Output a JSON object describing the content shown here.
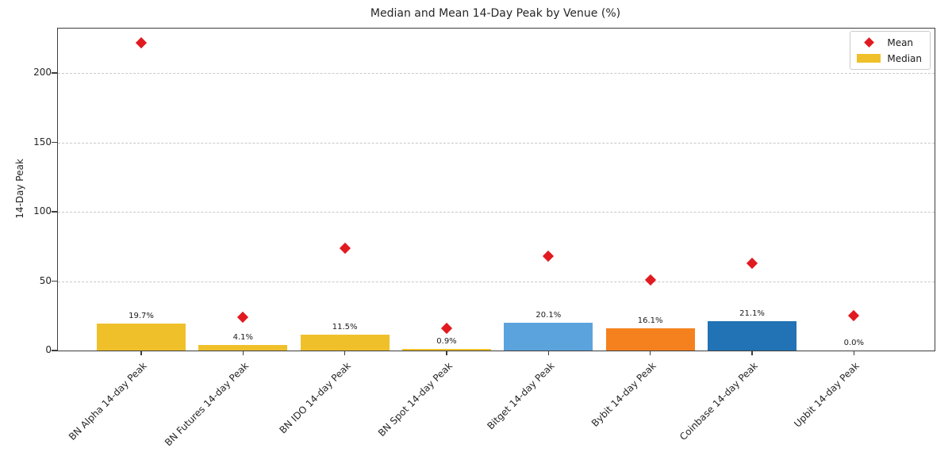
{
  "chart_data": {
    "type": "bar",
    "title": "Median and Mean 14-Day Peak by Venue (%)",
    "xlabel": "",
    "ylabel": "14-Day Peak",
    "categories": [
      "BN Alpha 14-day Peak",
      "BN Futures 14-day Peak",
      "BN IDO 14-day Peak",
      "BN Spot 14-day Peak",
      "Bitget 14-day Peak",
      "Bybit 14-day Peak",
      "Coinbase 14-day Peak",
      "Upbit 14-day Peak"
    ],
    "series": [
      {
        "name": "Median",
        "type": "bar",
        "values": [
          19.7,
          4.1,
          11.5,
          0.9,
          20.1,
          16.1,
          21.1,
          0.0
        ],
        "value_labels": [
          "19.7%",
          "4.1%",
          "11.5%",
          "0.9%",
          "20.1%",
          "16.1%",
          "21.1%",
          "0.0%"
        ],
        "bar_colors": [
          "#efc02a",
          "#efc02a",
          "#efc02a",
          "#efc02a",
          "#5ba3dc",
          "#f5811e",
          "#2272b6",
          "#efc02a"
        ]
      },
      {
        "name": "Mean",
        "type": "scatter",
        "marker": "diamond",
        "color": "#e11a20",
        "values": [
          222,
          24,
          74,
          16,
          68,
          51,
          63,
          25
        ]
      }
    ],
    "yticks": [
      0,
      50,
      100,
      150,
      200
    ],
    "ylim": [
      0,
      232
    ],
    "grid": "horizontal-dashed",
    "legend": {
      "position": "top-right",
      "entries": [
        {
          "label": "Mean",
          "marker": "red-diamond",
          "color": "#e11a20"
        },
        {
          "label": "Median",
          "marker": "gold-bar",
          "color": "#efc02a"
        }
      ]
    }
  }
}
